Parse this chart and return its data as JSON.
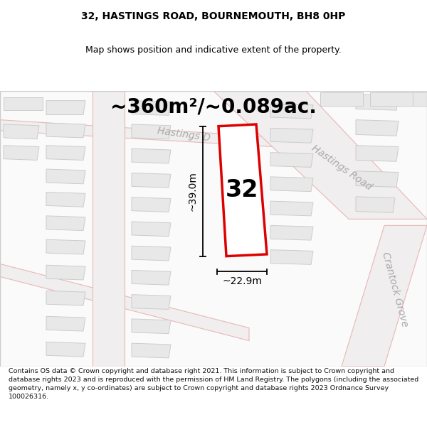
{
  "title_line1": "32, HASTINGS ROAD, BOURNEMOUTH, BH8 0HP",
  "title_line2": "Map shows position and indicative extent of the property.",
  "area_text": "~360m²/~0.089ac.",
  "label_32": "32",
  "dim_height": "~39.0m",
  "dim_width": "~22.9m",
  "road_label_upper": "Hastings D",
  "road_label_main": "Hastings Road",
  "road_label_grove": "Crantock Grove",
  "footer": "Contains OS data © Crown copyright and database right 2021. This information is subject to Crown copyright and database rights 2023 and is reproduced with the permission of HM Land Registry. The polygons (including the associated geometry, namely x, y co-ordinates) are subject to Crown copyright and database rights 2023 Ordnance Survey 100026316.",
  "map_bg": "#fafafa",
  "road_line_color": "#e8b8b8",
  "road_fill_color": "#eeeeee",
  "building_fill": "#e8e8e8",
  "building_edge": "#cccccc",
  "plot_color": "#dd0000",
  "plot_fill": "#ffffff",
  "dim_line_color": "#000000",
  "text_color": "#000000",
  "road_text_color": "#aaaaaa",
  "title_fontsize": 10,
  "subtitle_fontsize": 9,
  "area_fontsize": 20,
  "label_fontsize": 24,
  "dim_fontsize": 10,
  "road_fontsize": 10,
  "footer_fontsize": 6.8
}
